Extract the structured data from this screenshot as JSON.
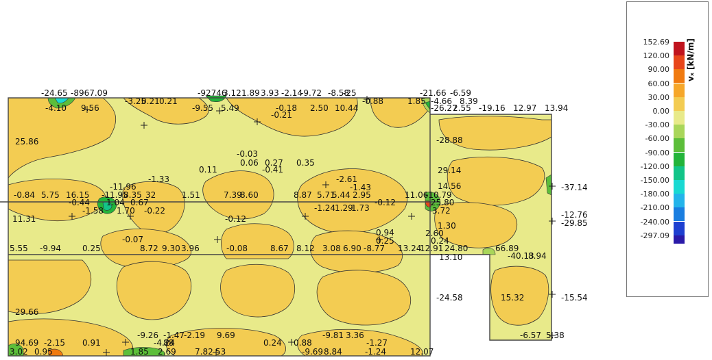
{
  "legend": {
    "title": "vₓ [kN/m]",
    "entries": [
      {
        "value": "152.69",
        "color": "#c0141e"
      },
      {
        "value": "120.00",
        "color": "#e8461a"
      },
      {
        "value": "90.00",
        "color": "#f07a10"
      },
      {
        "value": "60.00",
        "color": "#f6a72a"
      },
      {
        "value": "30.00",
        "color": "#f3cc52"
      },
      {
        "value": "0.00",
        "color": "#e8ea8a"
      },
      {
        "value": "-30.00",
        "color": "#a9d65a"
      },
      {
        "value": "-60.00",
        "color": "#5cbe3a"
      },
      {
        "value": "-90.00",
        "color": "#22b43a"
      },
      {
        "value": "-120.00",
        "color": "#12c488"
      },
      {
        "value": "-150.00",
        "color": "#19d9d2"
      },
      {
        "value": "-180.00",
        "color": "#24b4ea"
      },
      {
        "value": "-210.00",
        "color": "#1a7ee0"
      },
      {
        "value": "-240.00",
        "color": "#1e3fd0"
      },
      {
        "value": "-297.09",
        "color": "#2a1aa8"
      }
    ]
  },
  "plot_labels": [
    "-24.65",
    "-8967.09",
    "-3.25",
    "0.21",
    "0.21",
    "-92746",
    "3.12",
    "1.89",
    "3.93",
    "-2.14",
    "-9.72",
    "-8.58",
    "-25",
    "-21.66",
    "-6.59",
    "-4.66",
    "8.39",
    "-4.10",
    "9.56",
    "-9.55",
    "5.49",
    "-0.18",
    "2.50",
    "10.44",
    "-0.88",
    "1.85",
    "-26.27",
    "2.55",
    "-19.16",
    "12.97",
    "13.94",
    "-0.21",
    "25.86",
    "-28.88",
    "-0.03",
    "0.06",
    "0.27",
    "0.35",
    "0.11",
    "-0.41",
    "29.14",
    "-1.33",
    "-2.61",
    "-1.43",
    "-37.14",
    "-11.96",
    "14.56",
    "-0.84",
    "5.75",
    "16.15",
    "-11.95",
    "8.35",
    "32",
    "1.51",
    "7.39",
    "8.60",
    "8.87",
    "5.71",
    "5.44",
    "2.95",
    "11.06",
    "-10.79",
    "-0.44",
    "1.04",
    "0.67",
    "25.80",
    "-0.12",
    "-12.76",
    "-1.58",
    "1.70",
    "-0.22",
    "-1.24",
    "1.29",
    "1.73",
    "3.72",
    "-29.85",
    "11.31",
    "1.30",
    "-0.12",
    "0.94",
    "2.60",
    "-0.07",
    "0.25",
    "0.24",
    "5.55",
    "-9.94",
    "0.25",
    "8.72",
    "9.30",
    "3.96",
    "-0.08",
    "8.67",
    "8.12",
    "3.08",
    "6.90",
    "-8.77",
    "13.24",
    "12.91",
    "24.80",
    "66.89",
    "-40.13",
    "8.94",
    "13.10",
    "-24.58",
    "15.32",
    "-15.54",
    "29.66",
    "-9.26",
    "-1.47",
    "-2.19",
    "9.69",
    "-9.81",
    "3.36",
    "-4.24",
    "88",
    "0.24",
    "0.88",
    "-1.27",
    "-6.57",
    "5.38",
    "94.69",
    "-2.15",
    "0.91",
    "3.02",
    "0.95",
    "1.85",
    "2.69",
    "7.82",
    "53",
    "-9.69",
    "8.84",
    "-1.24",
    "12.07"
  ]
}
